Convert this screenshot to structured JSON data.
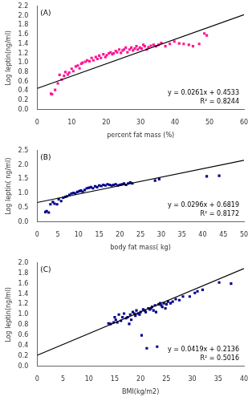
{
  "chart_data": [
    {
      "type": "scatter",
      "x_label": "percent fat mass (%)",
      "y_label": "Log leptin(ng/ml)",
      "annotations": [
        "(A)",
        "y = 0.0261x + 0.4533",
        "R² = 0.8244"
      ],
      "xlim": [
        0,
        60
      ],
      "ylim": [
        0,
        2.2
      ],
      "xticks": [
        0,
        10,
        20,
        30,
        40,
        50,
        60
      ],
      "yticks": [
        {
          "value": 0,
          "label": "0.0"
        },
        0.2,
        0.4,
        0.6,
        0.8,
        {
          "value": 1.0,
          "label": "1.0"
        },
        1.2,
        1.4,
        1.6,
        1.8,
        {
          "value": 2.0,
          "label": "2.0"
        },
        2.2
      ],
      "grid": false,
      "series": [
        {
          "type": "scatter",
          "color": "#FF1493",
          "marker": "square",
          "x": [
            4.0,
            4.3,
            5.2,
            6.0,
            6.5,
            7.1,
            7.8,
            8.2,
            8.9,
            9.3,
            10.0,
            10.5,
            11.2,
            11.8,
            12.3,
            12.8,
            13.2,
            14.0,
            14.5,
            15.2,
            15.8,
            16.3,
            17.0,
            17.5,
            18.0,
            18.5,
            19.2,
            19.8,
            20.2,
            20.8,
            21.3,
            21.8,
            22.2,
            22.8,
            23.2,
            23.8,
            24.3,
            24.8,
            25.2,
            25.7,
            26.2,
            26.8,
            27.3,
            27.8,
            28.3,
            28.8,
            29.2,
            29.8,
            30.3,
            30.8,
            31.2,
            31.8,
            32.3,
            33.0,
            33.8,
            34.5,
            35.2,
            36.0,
            37.2,
            38.5,
            39.8,
            41.2,
            42.5,
            44.0,
            45.2,
            47.0,
            48.5,
            49.2
          ],
          "values": [
            0.34,
            0.33,
            0.42,
            0.56,
            0.74,
            0.64,
            0.72,
            0.8,
            0.75,
            0.79,
            0.87,
            0.82,
            0.92,
            0.94,
            0.88,
            0.98,
            1.0,
            1.02,
            1.05,
            1.03,
            1.1,
            1.05,
            1.12,
            1.08,
            1.15,
            1.1,
            1.18,
            1.12,
            1.16,
            1.2,
            1.22,
            1.18,
            1.2,
            1.25,
            1.22,
            1.28,
            1.21,
            1.26,
            1.28,
            1.32,
            1.22,
            1.28,
            1.32,
            1.26,
            1.3,
            1.35,
            1.28,
            1.32,
            1.3,
            1.38,
            1.35,
            1.28,
            1.33,
            1.36,
            1.38,
            1.35,
            1.38,
            1.42,
            1.35,
            1.4,
            1.45,
            1.41,
            1.4,
            1.38,
            1.35,
            1.4,
            1.62,
            1.58
          ]
        },
        {
          "type": "line",
          "color": "#000000",
          "x": [
            0,
            60
          ],
          "values": [
            0.4533,
            2.0193
          ]
        }
      ]
    },
    {
      "type": "scatter",
      "x_label": "body fat mass( kg)",
      "y_label": "Log leptin( ng/ml)",
      "annotations": [
        "(B)",
        "y = 0.0296x + 0.6819",
        "R² = 0.8172"
      ],
      "xlim": [
        0,
        50
      ],
      "ylim": [
        0,
        2.5
      ],
      "xticks": [
        0,
        5,
        10,
        15,
        20,
        25,
        30,
        35,
        40,
        45,
        50
      ],
      "yticks": [
        {
          "value": 0,
          "label": "0.0"
        },
        0.5,
        {
          "value": 1.0,
          "label": "1.0"
        },
        1.5,
        {
          "value": 2.0,
          "label": "2.0"
        },
        2.5
      ],
      "grid": false,
      "series": [
        {
          "type": "scatter",
          "color": "#00008B",
          "marker": "square",
          "x": [
            2.0,
            2.3,
            2.8,
            3.2,
            3.8,
            4.2,
            4.8,
            5.2,
            5.8,
            6.3,
            6.8,
            7.2,
            7.8,
            8.3,
            8.8,
            9.2,
            9.7,
            10.2,
            10.6,
            11.0,
            11.5,
            12.0,
            12.5,
            13.0,
            13.5,
            14.0,
            14.5,
            15.0,
            15.5,
            16.0,
            16.5,
            17.0,
            17.5,
            18.0,
            18.5,
            19.0,
            19.5,
            20.0,
            20.5,
            21.0,
            21.5,
            22.0,
            22.5,
            23.0,
            28.5,
            29.5,
            41.0,
            44.0
          ],
          "values": [
            0.35,
            0.38,
            0.33,
            0.62,
            0.7,
            0.64,
            0.62,
            0.8,
            0.73,
            0.85,
            0.88,
            0.9,
            0.95,
            1.0,
            1.02,
            1.0,
            1.05,
            1.08,
            1.1,
            1.06,
            1.12,
            1.18,
            1.2,
            1.22,
            1.18,
            1.25,
            1.22,
            1.28,
            1.26,
            1.3,
            1.28,
            1.32,
            1.3,
            1.28,
            1.3,
            1.32,
            1.28,
            1.3,
            1.32,
            1.35,
            1.3,
            1.35,
            1.38,
            1.35,
            1.45,
            1.5,
            1.6,
            1.62
          ]
        },
        {
          "type": "line",
          "color": "#000000",
          "x": [
            0,
            50
          ],
          "values": [
            0.6819,
            2.1619
          ]
        }
      ]
    },
    {
      "type": "scatter",
      "x_label": "BMI(kg/m2)",
      "y_label": "Log leptin(ng/ml)",
      "annotations": [
        "(C)",
        "y = 0.0419x + 0.2136",
        "R² = 0.5016"
      ],
      "xlim": [
        0,
        40
      ],
      "ylim": [
        0,
        2.0
      ],
      "xticks": [
        0,
        5,
        10,
        15,
        20,
        25,
        30,
        35,
        40
      ],
      "yticks": [
        {
          "value": 0,
          "label": "0.0"
        },
        0.2,
        0.4,
        0.6,
        0.8,
        {
          "value": 1.0,
          "label": "1.0"
        },
        1.2,
        1.4,
        1.6,
        1.8,
        {
          "value": 2.0,
          "label": "2.0"
        }
      ],
      "grid": false,
      "series": [
        {
          "type": "scatter",
          "color": "#00008B",
          "marker": "square",
          "x": [
            13.8,
            14.2,
            14.8,
            15.0,
            15.2,
            15.5,
            15.8,
            16.2,
            16.5,
            16.8,
            17.2,
            17.5,
            17.8,
            18.0,
            18.2,
            18.5,
            18.8,
            19.0,
            19.2,
            19.5,
            19.8,
            20.0,
            20.2,
            20.5,
            20.8,
            21.0,
            21.2,
            21.5,
            21.8,
            22.0,
            22.2,
            22.5,
            22.8,
            23.0,
            23.2,
            23.5,
            23.8,
            24.0,
            24.2,
            24.5,
            24.8,
            25.0,
            25.3,
            25.8,
            26.2,
            26.8,
            27.5,
            28.2,
            29.5,
            30.5,
            31.0,
            32.0,
            35.2,
            37.5
          ],
          "values": [
            0.83,
            0.82,
            0.85,
            0.95,
            0.9,
            0.85,
            1.0,
            0.88,
            0.95,
            1.02,
            0.93,
            0.95,
            0.82,
            1.0,
            0.9,
            1.05,
            1.02,
            0.98,
            1.08,
            1.02,
            1.0,
            1.05,
            0.6,
            1.1,
            1.08,
            1.05,
            0.35,
            1.12,
            1.1,
            1.12,
            1.15,
            1.08,
            1.18,
            1.05,
            0.38,
            1.2,
            1.22,
            1.18,
            1.15,
            1.22,
            1.12,
            1.2,
            1.25,
            1.22,
            1.25,
            1.3,
            1.28,
            1.35,
            1.35,
            1.42,
            1.45,
            1.48,
            1.62,
            1.6
          ]
        },
        {
          "type": "line",
          "color": "#000000",
          "x": [
            0,
            40
          ],
          "values": [
            0.2136,
            1.8896
          ]
        }
      ]
    }
  ]
}
